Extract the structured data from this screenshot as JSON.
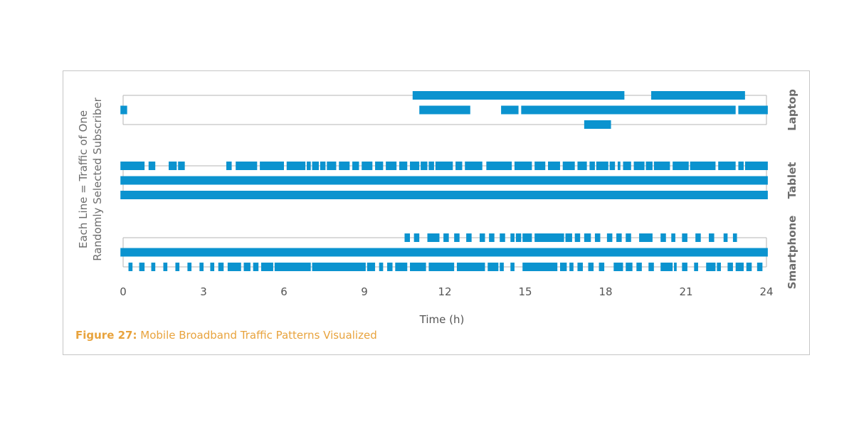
{
  "colors": {
    "bar": "#0b93cf",
    "group_frame": "#b5b5b5",
    "frame": "#c6c6c6",
    "axis_text": "#555555",
    "label_text": "#6d6d6d",
    "caption": "#e8a33d"
  },
  "caption": {
    "label": "Figure 27:",
    "text": "Mobile Broadband Traffic Patterns Visualized"
  },
  "chart_data": {
    "type": "timeline",
    "title": "",
    "xlabel": "Time (h)",
    "ylabel_lines": [
      "Each Line = Traffic of One",
      "Randomly Selected Subscriber"
    ],
    "xlim": [
      0,
      24
    ],
    "xticks": [
      "0",
      "3",
      "6",
      "9",
      "12",
      "15",
      "18",
      "21",
      "24"
    ],
    "groups": [
      {
        "name": "Laptop",
        "lines": [
          [
            [
              10.8,
              18.7
            ],
            [
              19.7,
              23.2
            ]
          ],
          [
            [
              -0.1,
              0.15
            ],
            [
              11.05,
              12.95
            ],
            [
              14.1,
              14.75
            ],
            [
              14.85,
              22.85
            ],
            [
              22.95,
              24.05
            ]
          ],
          [
            [
              17.2,
              18.2
            ]
          ]
        ]
      },
      {
        "name": "Tablet",
        "lines": [
          [
            [
              -0.1,
              0.8
            ],
            [
              0.95,
              1.2
            ],
            [
              1.7,
              2.0
            ],
            [
              2.05,
              2.3
            ],
            [
              3.85,
              4.05
            ],
            [
              4.2,
              5.0
            ],
            [
              5.1,
              6.0
            ],
            [
              6.1,
              6.8
            ],
            [
              6.85,
              7.0
            ],
            [
              7.05,
              7.3
            ],
            [
              7.35,
              7.55
            ],
            [
              7.6,
              7.95
            ],
            [
              8.05,
              8.45
            ],
            [
              8.55,
              8.8
            ],
            [
              8.9,
              9.3
            ],
            [
              9.4,
              9.7
            ],
            [
              9.8,
              10.2
            ],
            [
              10.3,
              10.6
            ],
            [
              10.7,
              11.05
            ],
            [
              11.1,
              11.35
            ],
            [
              11.4,
              11.6
            ],
            [
              11.65,
              12.3
            ],
            [
              12.4,
              12.65
            ],
            [
              12.75,
              13.4
            ],
            [
              13.55,
              14.5
            ],
            [
              14.6,
              15.25
            ],
            [
              15.35,
              15.75
            ],
            [
              15.85,
              16.3
            ],
            [
              16.4,
              16.85
            ],
            [
              16.95,
              17.3
            ],
            [
              17.4,
              17.6
            ],
            [
              17.65,
              18.1
            ],
            [
              18.15,
              18.35
            ],
            [
              18.45,
              18.55
            ],
            [
              18.65,
              18.95
            ],
            [
              19.05,
              19.45
            ],
            [
              19.5,
              19.75
            ],
            [
              19.8,
              20.4
            ],
            [
              20.5,
              21.1
            ],
            [
              21.15,
              22.1
            ],
            [
              22.2,
              22.85
            ],
            [
              22.95,
              23.15
            ],
            [
              23.2,
              24.05
            ]
          ],
          [
            [
              -0.1,
              24.05
            ]
          ],
          [
            [
              -0.1,
              24.05
            ]
          ]
        ]
      },
      {
        "name": "Smartphone",
        "lines": [
          [
            [
              10.5,
              10.7
            ],
            [
              10.85,
              11.05
            ],
            [
              11.35,
              11.8
            ],
            [
              11.95,
              12.15
            ],
            [
              12.35,
              12.55
            ],
            [
              12.8,
              13.0
            ],
            [
              13.3,
              13.5
            ],
            [
              13.65,
              13.85
            ],
            [
              14.05,
              14.25
            ],
            [
              14.45,
              14.6
            ],
            [
              14.65,
              14.85
            ],
            [
              14.9,
              15.25
            ],
            [
              15.35,
              16.45
            ],
            [
              16.5,
              16.75
            ],
            [
              16.85,
              17.05
            ],
            [
              17.2,
              17.45
            ],
            [
              17.6,
              17.8
            ],
            [
              18.05,
              18.25
            ],
            [
              18.4,
              18.6
            ],
            [
              18.75,
              18.95
            ],
            [
              19.25,
              19.75
            ],
            [
              20.05,
              20.25
            ],
            [
              20.45,
              20.6
            ],
            [
              20.85,
              21.05
            ],
            [
              21.35,
              21.55
            ],
            [
              21.85,
              22.05
            ],
            [
              22.4,
              22.55
            ],
            [
              22.75,
              22.9
            ]
          ],
          [
            [
              -0.1,
              24.05
            ]
          ],
          [
            [
              0.2,
              0.35
            ],
            [
              0.6,
              0.8
            ],
            [
              1.05,
              1.2
            ],
            [
              1.5,
              1.65
            ],
            [
              1.95,
              2.1
            ],
            [
              2.4,
              2.55
            ],
            [
              2.85,
              3.0
            ],
            [
              3.25,
              3.4
            ],
            [
              3.55,
              3.75
            ],
            [
              3.9,
              4.4
            ],
            [
              4.5,
              4.75
            ],
            [
              4.85,
              5.05
            ],
            [
              5.15,
              5.6
            ],
            [
              5.65,
              7.0
            ],
            [
              7.05,
              9.05
            ],
            [
              9.1,
              9.4
            ],
            [
              9.55,
              9.7
            ],
            [
              9.85,
              10.05
            ],
            [
              10.15,
              10.6
            ],
            [
              10.7,
              11.3
            ],
            [
              11.4,
              12.35
            ],
            [
              12.45,
              13.5
            ],
            [
              13.6,
              14.0
            ],
            [
              14.05,
              14.2
            ],
            [
              14.45,
              14.6
            ],
            [
              14.9,
              16.2
            ],
            [
              16.3,
              16.55
            ],
            [
              16.65,
              16.8
            ],
            [
              16.95,
              17.15
            ],
            [
              17.35,
              17.55
            ],
            [
              17.75,
              17.95
            ],
            [
              18.3,
              18.65
            ],
            [
              18.75,
              19.0
            ],
            [
              19.15,
              19.35
            ],
            [
              19.6,
              19.8
            ],
            [
              20.05,
              20.5
            ],
            [
              20.55,
              20.65
            ],
            [
              20.85,
              21.05
            ],
            [
              21.3,
              21.45
            ],
            [
              21.75,
              22.1
            ],
            [
              22.15,
              22.3
            ],
            [
              22.55,
              22.75
            ],
            [
              22.85,
              23.15
            ],
            [
              23.25,
              23.45
            ],
            [
              23.65,
              23.85
            ]
          ]
        ]
      }
    ]
  }
}
